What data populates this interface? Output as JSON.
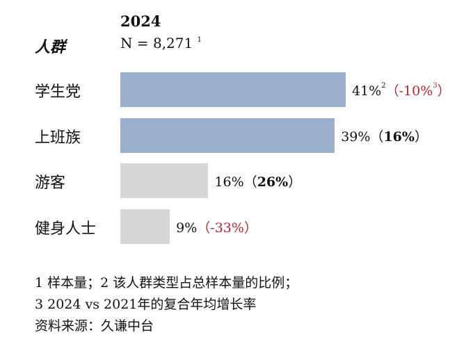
{
  "chart_data": {
    "type": "bar",
    "orientation": "horizontal",
    "year": "2024",
    "category_header": "人群",
    "sample": {
      "text": "N = 8,271",
      "note": "1"
    },
    "categories": [
      "学生党",
      "上班族",
      "游客",
      "健身人士"
    ],
    "series": [
      {
        "values": [
          41,
          39,
          16,
          9
        ],
        "labels": [
          "41%",
          "39%",
          "16%",
          "9%"
        ],
        "label_notes": [
          "2",
          "",
          "",
          ""
        ],
        "changes": [
          "-10%",
          "16%",
          "26%",
          "-33%"
        ],
        "change_notes": [
          "3",
          "",
          "",
          ""
        ],
        "bar_colors": [
          "#9aafcc",
          "#9aafcc",
          "#d5d6d8",
          "#d5d6d8"
        ]
      }
    ],
    "xlim": [
      0,
      41
    ],
    "change_colors": {
      "negative": "#b2252a",
      "positive": "#111111"
    }
  },
  "footnotes": [
    "1 样本量；2 该人群类型占总样本量的比例；",
    "3 2024 vs 2021年的复合年均增长率",
    "资料来源：久谦中台"
  ]
}
